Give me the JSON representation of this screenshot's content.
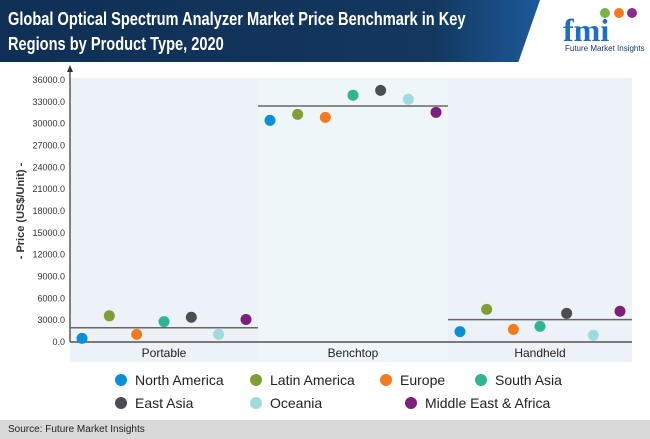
{
  "header": {
    "title": "Global Optical Spectrum Analyzer Market Price Benchmark in Key Regions by Product Type, 2020",
    "logo": "fmi",
    "logo_tagline": "Future Market Insights"
  },
  "footer": {
    "source": "Source: Future Market Insights"
  },
  "chart_data": {
    "type": "scatter",
    "title": "Global Optical Spectrum Analyzer Market Price Benchmark in Key Regions by Product Type, 2020",
    "ylabel": "- Price (US$/Unit) -",
    "xlabel": "",
    "ylim": [
      0,
      36000
    ],
    "yticks": [
      "0.0",
      "3000.0",
      "6000.0",
      "9000.0",
      "12000.0",
      "15000.0",
      "18000.0",
      "21000.0",
      "24000.0",
      "27000.0",
      "30000.0",
      "33000.0",
      "36000.0"
    ],
    "categories": [
      "Portable",
      "Benchtop",
      "Handheld"
    ],
    "benchmark": [
      1950,
      32430,
      3070
    ],
    "legend_position": "bottom",
    "series": [
      {
        "name": "North America",
        "color": "#0a8fd6",
        "values": [
          500,
          30450,
          1420
        ]
      },
      {
        "name": "Latin America",
        "color": "#7f9f35",
        "values": [
          3600,
          31280,
          4490
        ]
      },
      {
        "name": "Europe",
        "color": "#f47a20",
        "values": [
          1050,
          30870,
          1740
        ]
      },
      {
        "name": "South Asia",
        "color": "#2db594",
        "values": [
          2800,
          33900,
          2150
        ]
      },
      {
        "name": "East Asia",
        "color": "#4a4d52",
        "values": [
          3400,
          34580,
          3940
        ]
      },
      {
        "name": "Oceania",
        "color": "#9edbdc",
        "values": [
          1050,
          33350,
          920
        ]
      },
      {
        "name": "Middle East & Africa",
        "color": "#7e1f7a",
        "values": [
          3100,
          31560,
          4220
        ]
      }
    ]
  }
}
